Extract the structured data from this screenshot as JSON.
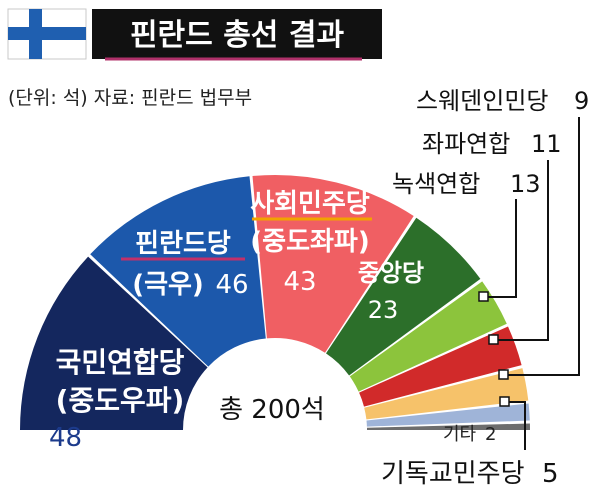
{
  "header": {
    "title": "핀란드 총선 결과",
    "source_note": "(단위: 석)  자료: 핀란드 법무부",
    "flag_colors": {
      "field": "#ffffff",
      "cross": "#1f5fb0"
    }
  },
  "chart_data": {
    "type": "pie",
    "subtype": "parliament-half-donut",
    "title": "핀란드 총선 결과",
    "unit": "석",
    "total_label": "총 200석",
    "total": 200,
    "series": [
      {
        "name": "국민연합당",
        "sub": "(중도우파)",
        "value": 48,
        "value_label": "48",
        "color": "#14275e"
      },
      {
        "name": "핀란드당",
        "sub": "(극우)",
        "value": 46,
        "value_label": "46",
        "color": "#1c58ab"
      },
      {
        "name": "사회민주당",
        "sub": "(중도좌파)",
        "value": 43,
        "value_label": "43",
        "color": "#f05f63"
      },
      {
        "name": "중앙당",
        "sub": "",
        "value": 23,
        "value_label": "23",
        "color": "#2c6f2a"
      },
      {
        "name": "녹색연합",
        "sub": "",
        "value": 13,
        "value_label": "13",
        "color": "#8cc43c"
      },
      {
        "name": "좌파연합",
        "sub": "",
        "value": 11,
        "value_label": "11",
        "color": "#d12a2a"
      },
      {
        "name": "스웨덴인민당",
        "sub": "",
        "value": 9,
        "value_label": "9",
        "color": "#f6c26a"
      },
      {
        "name": "기독교민주당",
        "sub": "",
        "value": 5,
        "value_label": "5",
        "color": "#9fb4d8"
      },
      {
        "name": "기타",
        "sub": "",
        "value": 2,
        "value_label": "2",
        "color": "#6d6d6d"
      }
    ]
  }
}
